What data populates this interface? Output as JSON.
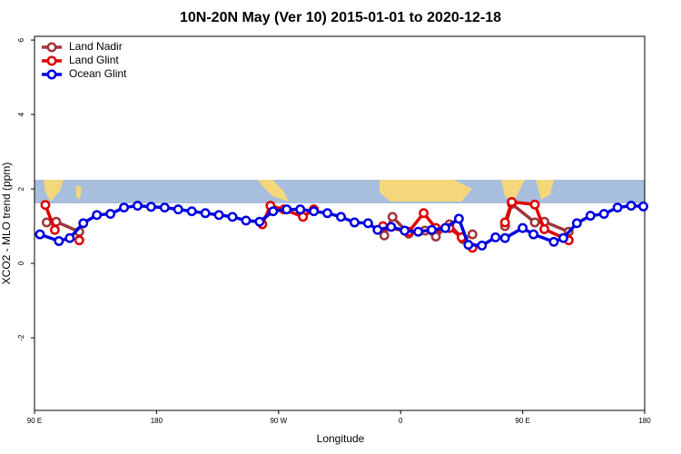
{
  "chart_data": {
    "type": "line",
    "title": "10N-20N May (Ver 10)   2015-01-01 to 2020-12-18",
    "x_label": "Longitude",
    "y_label": "XCO2 - MLO trend (ppm)",
    "xlim": [
      90,
      540
    ],
    "xticks": [
      {
        "value": 90,
        "label": "90 E"
      },
      180,
      {
        "value": 270,
        "label": "90 W"
      },
      {
        "value": 360,
        "label": "0"
      },
      {
        "value": 450,
        "label": "90 E"
      },
      {
        "value": 540,
        "label": "180"
      }
    ],
    "ylim": [
      -3.95,
      6.1
    ],
    "yticks": [
      -2,
      0,
      2,
      4,
      6
    ],
    "legend": "top-left",
    "series": [
      {
        "name": "Land Nadir",
        "color": "#a0363a",
        "x": [
          99,
          106,
          123,
          null,
          348,
          354,
          366,
          378,
          386,
          396,
          406,
          413,
          null,
          437,
          442,
          459,
          466,
          484
        ],
        "values": [
          1.1,
          1.12,
          0.85,
          null,
          0.75,
          1.25,
          0.8,
          0.88,
          0.72,
          1.05,
          0.65,
          0.78,
          null,
          1.0,
          1.6,
          1.1,
          1.12,
          0.85
        ]
      },
      {
        "name": "Land Glint",
        "color": "#e00000",
        "x": [
          98,
          105,
          null,
          123,
          null,
          258,
          264,
          274,
          288,
          296,
          null,
          347,
          366,
          377,
          386,
          396,
          405,
          413,
          null,
          437,
          442,
          459,
          466,
          484
        ],
        "values": [
          1.57,
          0.9,
          null,
          0.62,
          null,
          1.05,
          1.55,
          1.45,
          1.25,
          1.45,
          null,
          1.0,
          0.85,
          1.35,
          0.95,
          0.95,
          0.7,
          0.42,
          null,
          1.1,
          1.65,
          1.58,
          0.92,
          0.62
        ]
      },
      {
        "name": "Ocean Glint",
        "color": "#0000e0",
        "x": [
          94,
          108,
          116,
          126,
          136,
          146,
          156,
          166,
          176,
          186,
          196,
          206,
          216,
          226,
          236,
          246,
          256,
          266,
          276,
          286,
          296,
          306,
          316,
          326,
          336,
          343,
          353,
          363,
          373,
          383,
          393,
          403,
          410,
          420,
          430,
          437,
          450,
          458,
          473,
          480,
          490,
          500,
          510,
          520,
          530,
          539
        ],
        "values": [
          0.78,
          0.6,
          0.68,
          1.08,
          1.3,
          1.33,
          1.5,
          1.55,
          1.52,
          1.5,
          1.45,
          1.4,
          1.35,
          1.3,
          1.25,
          1.15,
          1.12,
          1.4,
          1.45,
          1.45,
          1.4,
          1.35,
          1.25,
          1.1,
          1.08,
          0.9,
          0.98,
          0.88,
          0.85,
          0.9,
          0.95,
          1.2,
          0.5,
          0.48,
          0.7,
          0.68,
          0.95,
          0.78,
          0.58,
          0.68,
          1.08,
          1.28,
          1.33,
          1.5,
          1.55,
          1.53
        ]
      }
    ]
  }
}
